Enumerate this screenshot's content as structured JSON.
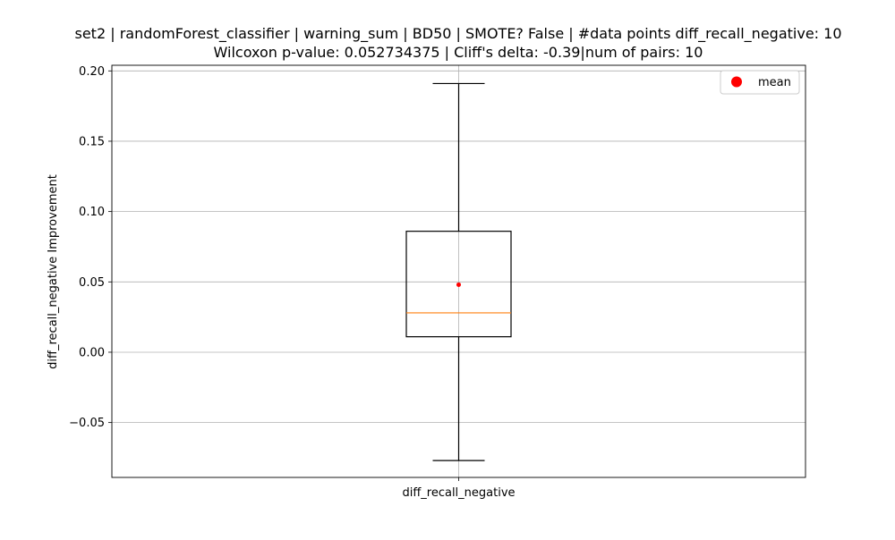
{
  "chart_data": {
    "type": "box",
    "title_line1": "set2 | randomForest_classifier | warning_sum | BD50 | SMOTE? False | #data points diff_recall_negative: 10",
    "title_line2": "Wilcoxon p-value: 0.052734375 | Cliff's delta: -0.39|num of pairs: 10",
    "xlabel": "",
    "ylabel": "diff_recall_negative Improvement",
    "categories": [
      "diff_recall_negative"
    ],
    "yticks": [
      "0.20",
      "0.15",
      "0.10",
      "0.05",
      "0.00",
      "−0.05"
    ],
    "ytick_values": [
      0.2,
      0.15,
      0.1,
      0.05,
      0.0,
      -0.05
    ],
    "ylim": [
      -0.089,
      0.204
    ],
    "grid": true,
    "legend": {
      "position": "top-right",
      "entries": [
        {
          "label": "mean",
          "color": "#ff0000",
          "marker": "circle"
        }
      ]
    },
    "boxes": [
      {
        "category": "diff_recall_negative",
        "whisker_low": -0.077,
        "q1": 0.011,
        "median": 0.028,
        "q3": 0.086,
        "whisker_high": 0.191,
        "mean": 0.048
      }
    ],
    "colors": {
      "box": "#000000",
      "median": "#ff7f0e",
      "mean": "#ff0000",
      "grid": "#b0b0b0"
    }
  }
}
